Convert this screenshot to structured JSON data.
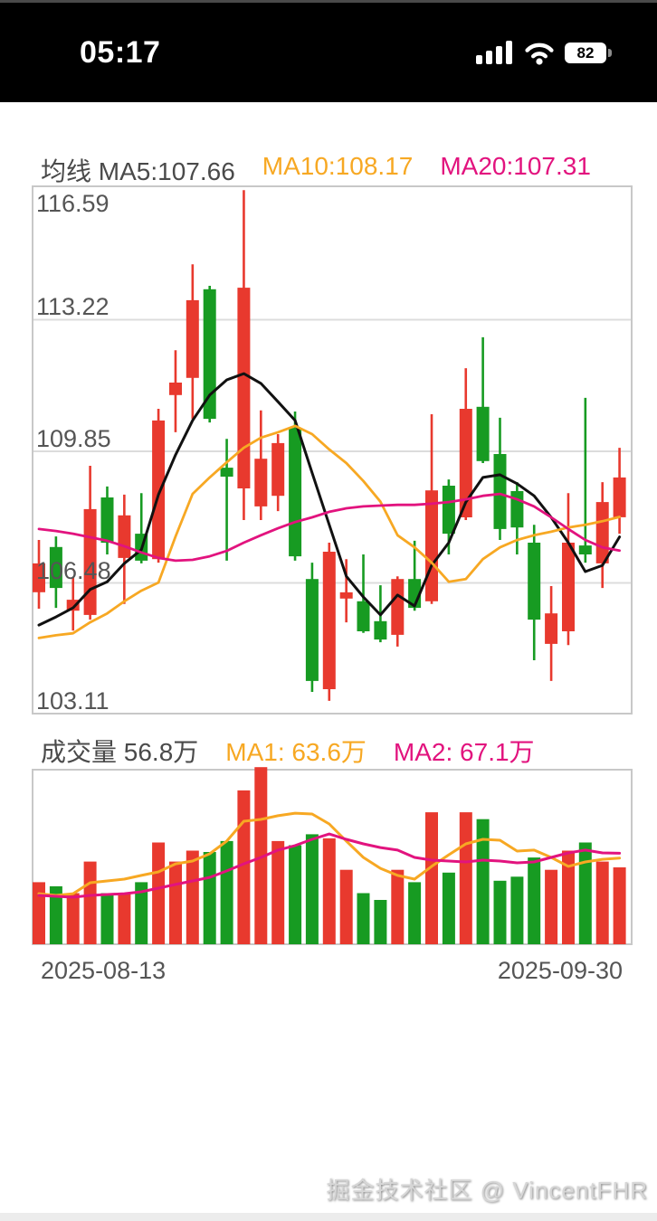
{
  "status_bar": {
    "time": "05:17",
    "battery_percent": "82"
  },
  "price_header": {
    "ma5": "均线 MA5:107.66",
    "ma10": "MA10:108.17",
    "ma20": "MA20:107.31"
  },
  "volume_header": {
    "vol": "成交量 56.8万",
    "ma1": "MA1: 63.6万",
    "ma2": "MA2: 67.1万"
  },
  "price_axis_labels": [
    "116.59",
    "113.22",
    "109.85",
    "106.48",
    "103.11"
  ],
  "x_axis": {
    "start_date": "2025-08-13",
    "end_date": "2025-09-30"
  },
  "watermark": "掘金技术社区 @ VincentFHR",
  "colors": {
    "up": "#e8392e",
    "down": "#179b22",
    "ma5": "#111111",
    "ma10": "#f7a823",
    "ma20": "#e2137e",
    "grid": "#dcdcdc",
    "frame": "#c8c8c8",
    "text": "#555555"
  },
  "chart_data": [
    {
      "type": "candlestick",
      "title": "均线",
      "ylabel": "价格",
      "ylim": [
        103.11,
        116.66
      ],
      "gridlines": [
        116.59,
        113.22,
        109.85,
        106.48,
        103.11
      ],
      "legend": [
        "MA5:107.66",
        "MA10:108.17",
        "MA20:107.31"
      ],
      "candles": [
        {
          "o": 106.24,
          "h": 107.58,
          "l": 105.82,
          "c": 106.98
        },
        {
          "o": 107.4,
          "h": 107.67,
          "l": 105.84,
          "c": 106.35
        },
        {
          "o": 105.77,
          "h": 106.63,
          "l": 105.26,
          "c": 106.05
        },
        {
          "o": 105.66,
          "h": 109.48,
          "l": 105.54,
          "c": 108.37
        },
        {
          "o": 108.67,
          "h": 108.95,
          "l": 107.21,
          "c": 107.51
        },
        {
          "o": 107.12,
          "h": 108.74,
          "l": 105.94,
          "c": 108.21
        },
        {
          "o": 107.74,
          "h": 108.78,
          "l": 106.98,
          "c": 107.05
        },
        {
          "o": 107.09,
          "h": 110.94,
          "l": 107.0,
          "c": 110.64
        },
        {
          "o": 111.29,
          "h": 112.44,
          "l": 110.34,
          "c": 111.61
        },
        {
          "o": 111.73,
          "h": 114.64,
          "l": 110.68,
          "c": 113.72
        },
        {
          "o": 114.0,
          "h": 114.09,
          "l": 110.59,
          "c": 110.68
        },
        {
          "o": 109.43,
          "h": 110.17,
          "l": 107.05,
          "c": 109.2
        },
        {
          "o": 108.9,
          "h": 116.54,
          "l": 108.09,
          "c": 114.04
        },
        {
          "o": 108.44,
          "h": 110.9,
          "l": 108.09,
          "c": 109.66
        },
        {
          "o": 108.71,
          "h": 110.29,
          "l": 108.32,
          "c": 110.06
        },
        {
          "o": 110.45,
          "h": 110.87,
          "l": 107.05,
          "c": 107.16
        },
        {
          "o": 106.58,
          "h": 107.0,
          "l": 103.69,
          "c": 103.97
        },
        {
          "o": 103.76,
          "h": 107.51,
          "l": 103.46,
          "c": 107.28
        },
        {
          "o": 106.08,
          "h": 107.09,
          "l": 105.47,
          "c": 106.24
        },
        {
          "o": 106.01,
          "h": 107.21,
          "l": 105.2,
          "c": 105.24
        },
        {
          "o": 105.5,
          "h": 106.42,
          "l": 104.96,
          "c": 105.03
        },
        {
          "o": 105.15,
          "h": 106.65,
          "l": 104.85,
          "c": 106.58
        },
        {
          "o": 106.58,
          "h": 107.56,
          "l": 105.77,
          "c": 105.84
        },
        {
          "o": 106.01,
          "h": 110.8,
          "l": 105.94,
          "c": 108.85
        },
        {
          "o": 108.97,
          "h": 109.13,
          "l": 107.21,
          "c": 107.74
        },
        {
          "o": 108.16,
          "h": 111.98,
          "l": 108.09,
          "c": 110.94
        },
        {
          "o": 110.99,
          "h": 112.77,
          "l": 109.55,
          "c": 109.6
        },
        {
          "o": 109.78,
          "h": 110.71,
          "l": 107.58,
          "c": 107.86
        },
        {
          "o": 108.83,
          "h": 109.06,
          "l": 107.21,
          "c": 107.9
        },
        {
          "o": 107.51,
          "h": 107.97,
          "l": 104.5,
          "c": 105.54
        },
        {
          "o": 104.92,
          "h": 106.4,
          "l": 103.97,
          "c": 105.7
        },
        {
          "o": 105.24,
          "h": 108.78,
          "l": 104.89,
          "c": 107.51
        },
        {
          "o": 107.44,
          "h": 111.22,
          "l": 107.0,
          "c": 107.21
        },
        {
          "o": 106.98,
          "h": 109.06,
          "l": 106.35,
          "c": 108.55
        },
        {
          "o": 108.16,
          "h": 109.94,
          "l": 107.74,
          "c": 109.18
        }
      ],
      "series": [
        {
          "name": "MA5",
          "color": "#111111",
          "width": 3,
          "values": [
            105.4,
            105.61,
            105.84,
            106.31,
            106.51,
            106.98,
            107.33,
            108.74,
            109.76,
            110.64,
            111.29,
            111.68,
            111.84,
            111.59,
            111.12,
            110.64,
            109.3,
            107.97,
            106.65,
            106.12,
            105.66,
            106.17,
            105.89,
            106.93,
            107.51,
            108.55,
            109.18,
            109.25,
            109.02,
            108.71,
            108.16,
            107.51,
            106.77,
            106.93,
            107.66
          ]
        },
        {
          "name": "MA10",
          "color": "#f7a823",
          "width": 2.8,
          "values": [
            105.07,
            105.14,
            105.19,
            105.47,
            105.7,
            106.01,
            106.28,
            106.49,
            107.67,
            108.76,
            109.18,
            109.57,
            109.94,
            110.2,
            110.34,
            110.5,
            110.29,
            109.9,
            109.55,
            109.09,
            108.56,
            107.7,
            107.39,
            107.0,
            106.51,
            106.58,
            107.09,
            107.39,
            107.58,
            107.7,
            107.79,
            107.9,
            107.97,
            108.06,
            108.17
          ]
        },
        {
          "name": "MA20",
          "color": "#e2137e",
          "width": 2.8,
          "values": [
            107.86,
            107.81,
            107.74,
            107.65,
            107.56,
            107.42,
            107.26,
            107.12,
            107.05,
            107.07,
            107.16,
            107.3,
            107.51,
            107.7,
            107.88,
            108.04,
            108.16,
            108.3,
            108.39,
            108.44,
            108.46,
            108.48,
            108.48,
            108.51,
            108.55,
            108.62,
            108.71,
            108.76,
            108.62,
            108.44,
            108.16,
            107.86,
            107.58,
            107.39,
            107.31
          ]
        }
      ]
    },
    {
      "type": "bar",
      "title": "成交量",
      "unit": "万",
      "ylim": [
        0,
        128.8
      ],
      "latest_volume": 56.8,
      "values": [
        46,
        43,
        38,
        61,
        38,
        38,
        46,
        75,
        61,
        69,
        68,
        76,
        113,
        130,
        76,
        73,
        81,
        78,
        55,
        38,
        33,
        55,
        46,
        97,
        53,
        97,
        92,
        47,
        50,
        64,
        55,
        69,
        75,
        61,
        56.8
      ],
      "series": [
        {
          "name": "MA1",
          "color": "#f7a823",
          "width": 3,
          "values": [
            37.6,
            36.3,
            37.6,
            45.6,
            46.9,
            48.2,
            50.9,
            53.5,
            59.4,
            61.4,
            66.7,
            76.0,
            90.5,
            91.8,
            94.5,
            96.4,
            95.8,
            88.5,
            76.0,
            64.1,
            56.1,
            50.9,
            48.2,
            57.5,
            66.0,
            74.0,
            77.3,
            76.6,
            68.7,
            69.4,
            64.1,
            57.5,
            60.8,
            62.7,
            63.6
          ]
        },
        {
          "name": "MA2",
          "color": "#e2137e",
          "width": 3,
          "values": [
            36.3,
            35.7,
            35.0,
            36.3,
            37.0,
            37.6,
            39.0,
            41.6,
            44.3,
            46.9,
            49.5,
            54.2,
            59.4,
            64.1,
            69.4,
            72.7,
            77.3,
            81.2,
            77.3,
            74.0,
            71.3,
            69.4,
            64.1,
            62.1,
            61.4,
            60.8,
            62.1,
            61.4,
            60.1,
            60.8,
            64.1,
            67.4,
            69.4,
            67.4,
            67.1
          ]
        }
      ]
    }
  ]
}
